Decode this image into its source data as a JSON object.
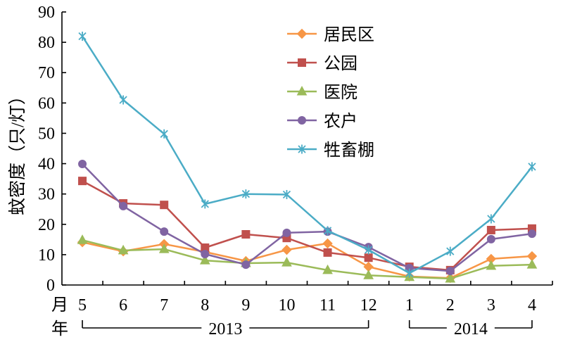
{
  "chart_data": {
    "type": "line",
    "ylabel": "蚊密度（只/灯）",
    "xlabel": "月",
    "year_row_label": "年",
    "ylim": [
      0,
      90
    ],
    "yticks": [
      0,
      10,
      20,
      30,
      40,
      50,
      60,
      70,
      80,
      90
    ],
    "categories": [
      "5",
      "6",
      "7",
      "8",
      "9",
      "10",
      "11",
      "12",
      "1",
      "2",
      "3",
      "4"
    ],
    "year_groups": [
      {
        "label": "2013",
        "first": 0,
        "last": 7
      },
      {
        "label": "2014",
        "first": 8,
        "last": 11
      }
    ],
    "grid": false,
    "legend_position": "upper-center",
    "series": [
      {
        "name": "居民区",
        "color": "#F79646",
        "marker": "diamond",
        "values": [
          14.1,
          11.1,
          13.5,
          10.9,
          7.9,
          11.6,
          13.7,
          6.0,
          2.8,
          2.3,
          8.6,
          9.5
        ]
      },
      {
        "name": "公园",
        "color": "#C0504D",
        "marker": "square",
        "values": [
          34.3,
          26.9,
          26.4,
          12.3,
          16.7,
          15.5,
          10.7,
          9.0,
          6.0,
          4.9,
          18.1,
          18.6
        ]
      },
      {
        "name": "医院",
        "color": "#9BBB59",
        "marker": "triangle",
        "values": [
          14.8,
          11.4,
          11.8,
          8.1,
          7.2,
          7.4,
          4.9,
          3.2,
          2.6,
          2.1,
          6.3,
          6.7
        ]
      },
      {
        "name": "农户",
        "color": "#8064A2",
        "marker": "circle",
        "values": [
          39.9,
          26.0,
          17.6,
          10.2,
          6.7,
          17.2,
          17.6,
          12.5,
          5.6,
          4.6,
          15.1,
          16.9
        ]
      },
      {
        "name": "牲畜棚",
        "color": "#4BACC6",
        "marker": "asterisk",
        "values": [
          82.0,
          61.0,
          49.8,
          26.7,
          30.0,
          29.8,
          17.9,
          11.6,
          3.9,
          11.1,
          21.8,
          39.0
        ]
      }
    ]
  }
}
